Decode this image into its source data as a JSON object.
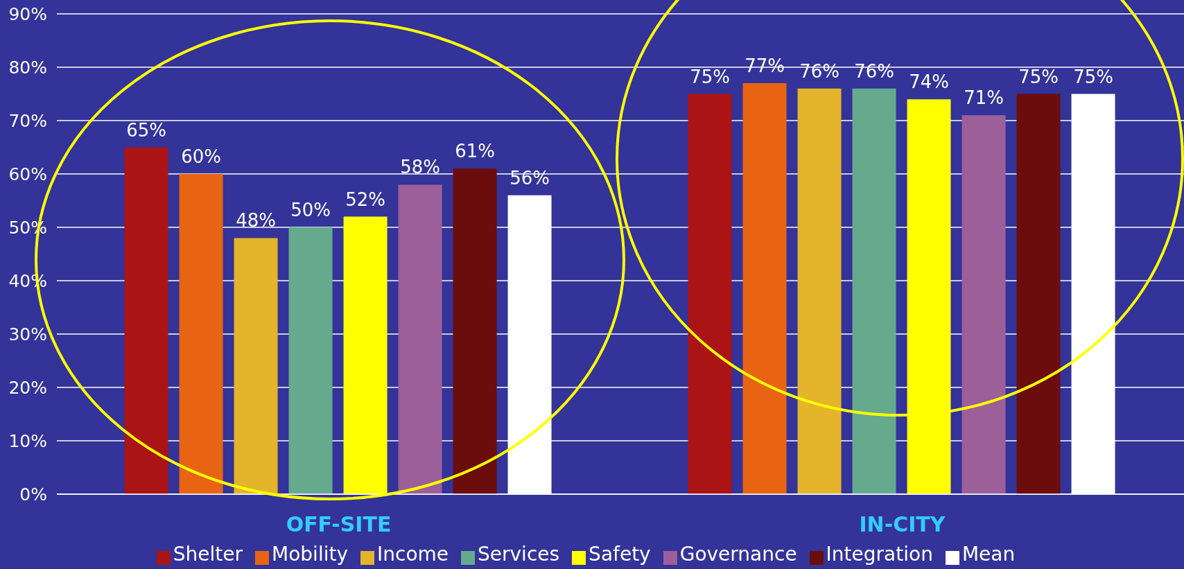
{
  "chart_data": {
    "type": "bar",
    "categories": [
      "OFF-SITE",
      "IN-CITY"
    ],
    "series": [
      {
        "name": "Shelter",
        "color": "#ab1414",
        "values": [
          65,
          75
        ],
        "value_labels": [
          "65%",
          "75%"
        ]
      },
      {
        "name": "Mobility",
        "color": "#e86413",
        "values": [
          60,
          77
        ],
        "value_labels": [
          "60%",
          "77%"
        ]
      },
      {
        "name": "Income",
        "color": "#e4b42b",
        "values": [
          48,
          76
        ],
        "value_labels": [
          "48%",
          "76%"
        ]
      },
      {
        "name": "Services",
        "color": "#66aa8e",
        "values": [
          50,
          76
        ],
        "value_labels": [
          "50%",
          "76%"
        ]
      },
      {
        "name": "Safety",
        "color": "#ffff00",
        "values": [
          52,
          74
        ],
        "value_labels": [
          "52%",
          "74%"
        ]
      },
      {
        "name": "Governance",
        "color": "#9c5f9a",
        "values": [
          58,
          71
        ],
        "value_labels": [
          "58%",
          "71%"
        ]
      },
      {
        "name": "Integration",
        "color": "#6b0d0d",
        "values": [
          61,
          75
        ],
        "value_labels": [
          "61%",
          "75%"
        ]
      },
      {
        "name": "Mean",
        "color": "#ffffff",
        "values": [
          56,
          75
        ],
        "value_labels": [
          "56%",
          "75%"
        ]
      }
    ],
    "ylim": [
      0,
      90
    ],
    "yticks": [
      {
        "value": 0,
        "label": "0%"
      },
      {
        "value": 10,
        "label": "10%"
      },
      {
        "value": 20,
        "label": "20%"
      },
      {
        "value": 30,
        "label": "30%"
      },
      {
        "value": 40,
        "label": "40%"
      },
      {
        "value": 50,
        "label": "50%"
      },
      {
        "value": 60,
        "label": "60%"
      },
      {
        "value": 70,
        "label": "70%"
      },
      {
        "value": 80,
        "label": "80%"
      },
      {
        "value": 90,
        "label": "90%"
      }
    ],
    "grid": "y",
    "legend": "bottom"
  }
}
